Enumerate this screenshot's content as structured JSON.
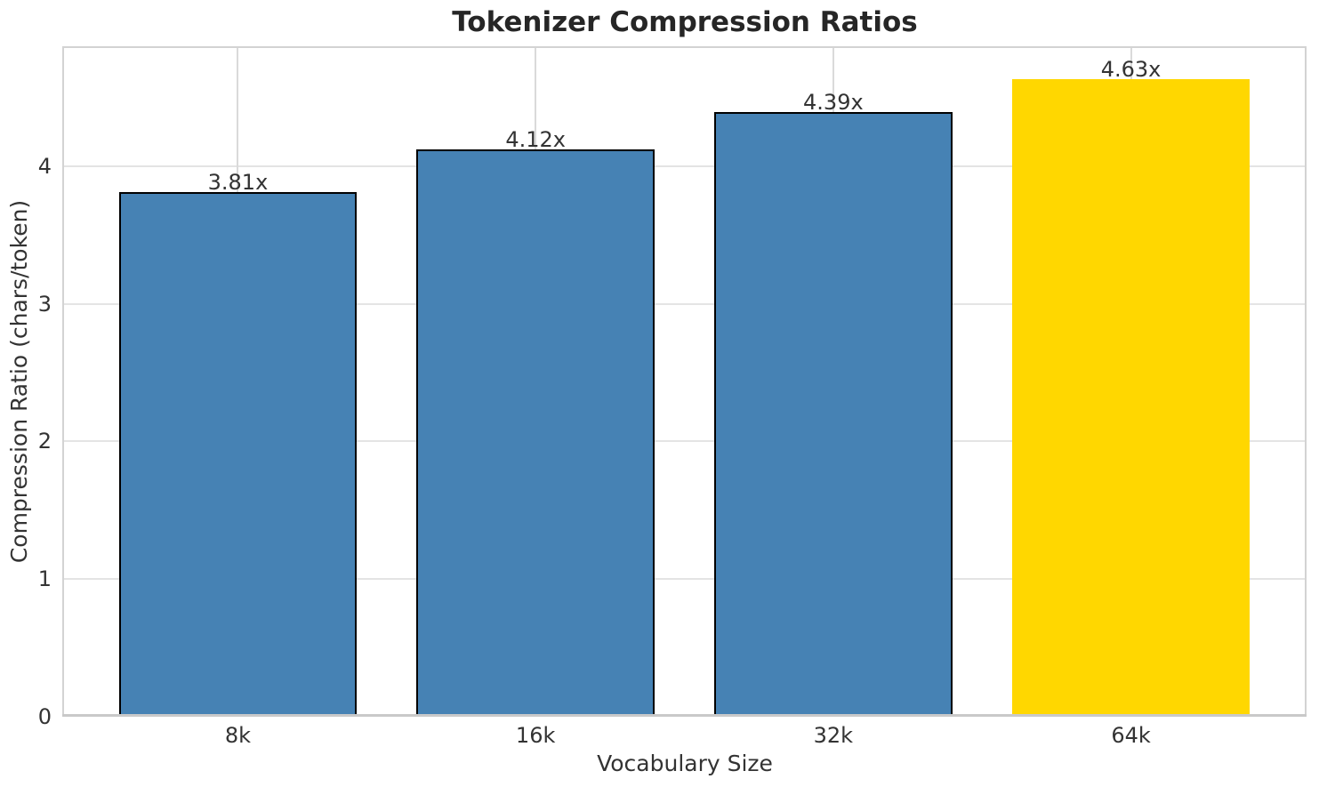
{
  "chart_data": {
    "type": "bar",
    "title": "Tokenizer Compression Ratios",
    "xlabel": "Vocabulary Size",
    "ylabel": "Compression Ratio (chars/token)",
    "categories": [
      "8k",
      "16k",
      "32k",
      "64k"
    ],
    "values": [
      3.81,
      4.12,
      4.39,
      4.63
    ],
    "bar_value_labels": [
      "3.81x",
      "4.12x",
      "4.39x",
      "4.63x"
    ],
    "ytick_labels": [
      "0",
      "1",
      "2",
      "3",
      "4"
    ],
    "ytick_values": [
      0,
      1,
      2,
      3,
      4
    ],
    "ylim": [
      0,
      4.87
    ],
    "xlim": [
      -0.59,
      3.59
    ],
    "bar_width": 0.8,
    "grid": true,
    "legend": false,
    "colors": {
      "bar_default": "#4682B4",
      "bar_highlight": "#FFD700",
      "bar_edge": "#000000",
      "highlight_index": 3
    }
  }
}
